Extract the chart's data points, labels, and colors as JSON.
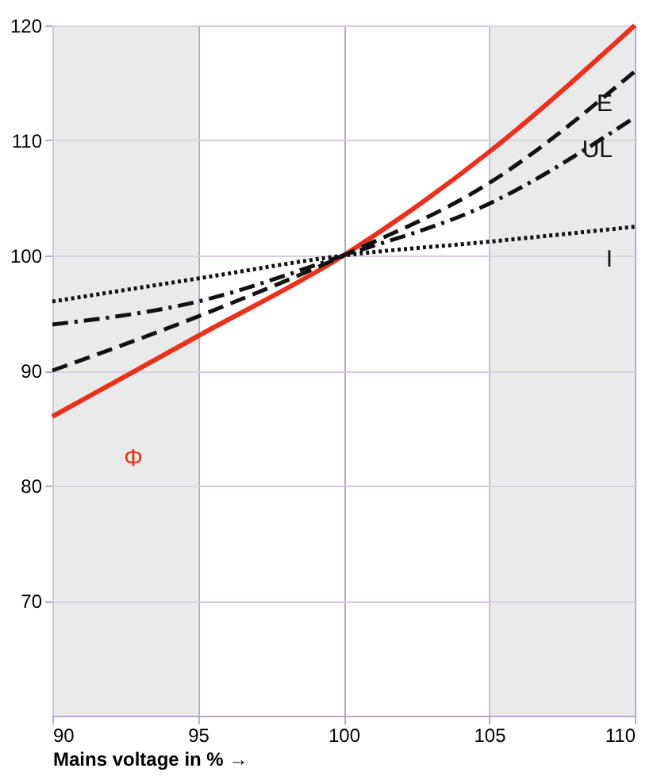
{
  "chart_data": {
    "type": "line",
    "xlabel": "Mains voltage in % →",
    "x": [
      90,
      95,
      100,
      105,
      110
    ],
    "series": [
      {
        "name": "Φ",
        "color": "#e8321e",
        "values": [
          86,
          93,
          100,
          109,
          120
        ],
        "line_style": "solid"
      },
      {
        "name": "E",
        "color": "#111111",
        "values": [
          90,
          94.7,
          100,
          106.3,
          116
        ],
        "line_style": "dashed"
      },
      {
        "name": "UL",
        "color": "#111111",
        "values": [
          94,
          96,
          100,
          104.5,
          112
        ],
        "line_style": "dashdot"
      },
      {
        "name": "I",
        "color": "#111111",
        "values": [
          96,
          98,
          100,
          101.2,
          102.5
        ],
        "line_style": "dotted"
      }
    ],
    "xlim": [
      90,
      110
    ],
    "xticks": [
      90,
      95,
      100,
      105,
      110
    ],
    "ylim": [
      60,
      120
    ],
    "yticks": [
      70,
      80,
      90,
      100,
      110,
      120
    ],
    "bands": [
      {
        "axis": "x",
        "from": 90,
        "to": 95,
        "color": "#dcdcdc"
      },
      {
        "axis": "x",
        "from": 105,
        "to": 110,
        "color": "#dcdcdc"
      }
    ],
    "grid": true,
    "marker": "none"
  }
}
